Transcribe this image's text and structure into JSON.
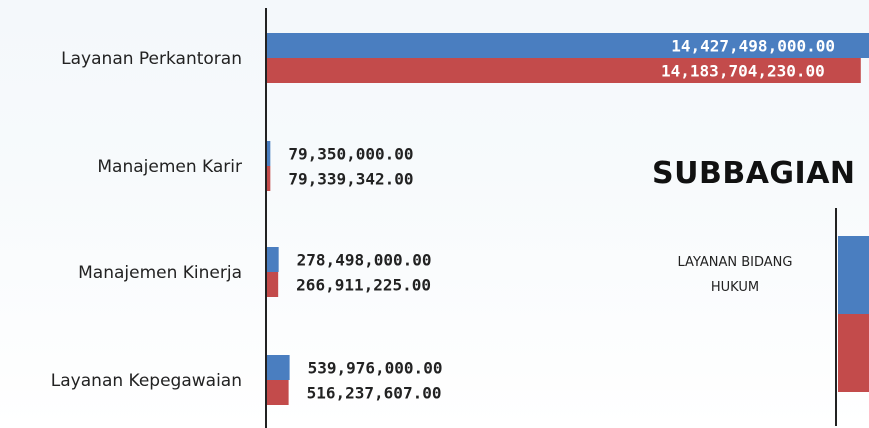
{
  "chart_data": {
    "type": "bar",
    "orientation": "horizontal",
    "categories": [
      "Layanan Perkantoran",
      "Manajemen Karir",
      "Manajemen Kinerja",
      "Layanan Kepegawaian"
    ],
    "series": [
      {
        "values": [
          14427498000.0,
          79350000.0,
          278498000.0,
          539976000.0
        ],
        "color": "#4a7ec0"
      },
      {
        "values": [
          14183704230.0,
          79339342.0,
          266911225.0,
          516237607.0
        ],
        "color": "#c34b4b"
      }
    ],
    "value_labels": [
      [
        "14,427,498,000.00",
        "79,350,000.00",
        "278,498,000.00",
        "539,976,000.00"
      ],
      [
        "14,183,704,230.00",
        "79,339,342.00",
        "266,911,225.00",
        "516,237,607.00"
      ]
    ],
    "xlim": [
      0,
      14427498000.0
    ]
  },
  "subbagian": {
    "title": "SUBBAGIAN",
    "label_line1": "LAYANAN BIDANG",
    "label_line2": "HUKUM"
  }
}
